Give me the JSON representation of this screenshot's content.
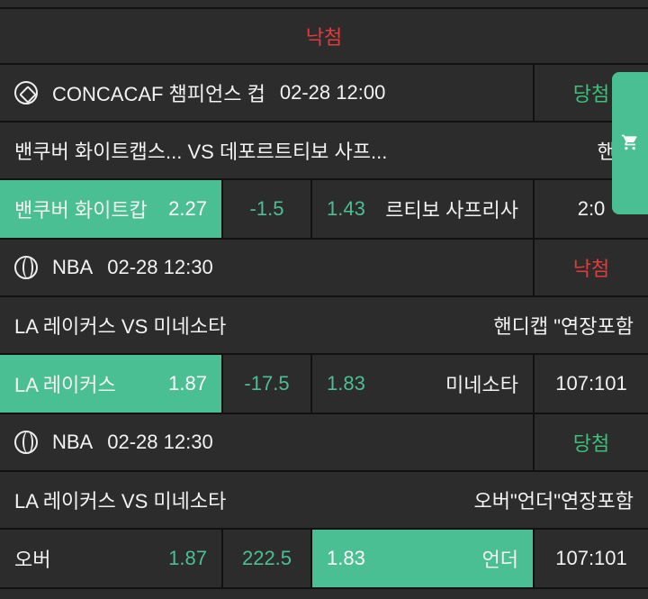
{
  "top_status": "낙첨",
  "games": [
    {
      "sport_icon": "soccer-ball-icon",
      "league": "CONCACAF 챔피언스 컵",
      "time": "02-28 12:00",
      "result": "당첨",
      "home": "밴쿠버 화이트캡스...",
      "vs": "VS",
      "away": "데포르트티보 사프...",
      "market": "핸디",
      "home_pick": "밴쿠버 화이트캅",
      "home_odds": "2.27",
      "line": "-1.5",
      "away_odds": "1.43",
      "away_pick": "르티보 사프리사",
      "score": "2:0",
      "selected": "home"
    },
    {
      "sport_icon": "basketball-icon",
      "league": "NBA",
      "time": "02-28 12:30",
      "result": "낙첨",
      "home": "LA 레이커스",
      "vs": "VS",
      "away": "미네소타",
      "market": "핸디캡 \"연장포함",
      "home_pick": "LA 레이커스",
      "home_odds": "1.87",
      "line": "-17.5",
      "away_odds": "1.83",
      "away_pick": "미네소타",
      "score": "107:101",
      "selected": "home"
    },
    {
      "sport_icon": "basketball-icon",
      "league": "NBA",
      "time": "02-28 12:30",
      "result": "당첨",
      "home": "LA 레이커스",
      "vs": "VS",
      "away": "미네소타",
      "market": "오버\"언더\"연장포함",
      "home_pick": "오버",
      "home_odds": "1.87",
      "line": "222.5",
      "away_odds": "1.83",
      "away_pick": "언더",
      "score": "107:101",
      "selected": "away"
    }
  ],
  "cart_icon": "shopping-cart-icon",
  "colors": {
    "accent": "#4bbf94",
    "win": "#3cc07a",
    "lose": "#e23b3b",
    "cell": "#2c2c2c"
  }
}
